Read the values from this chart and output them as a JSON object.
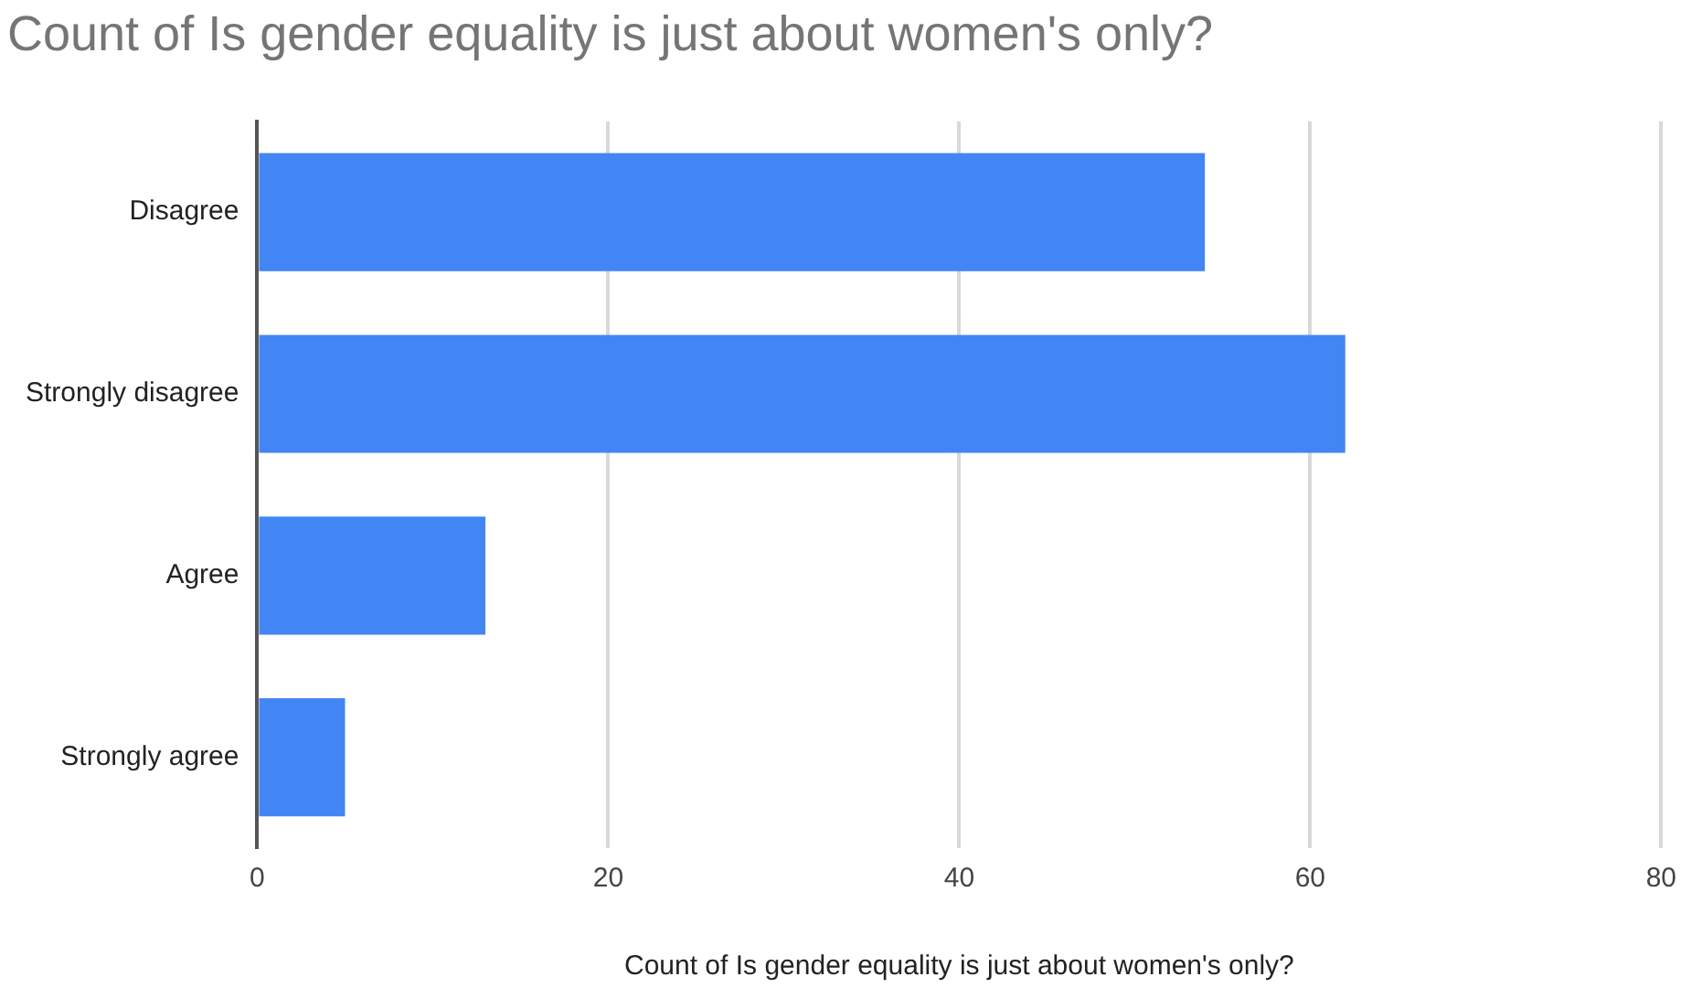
{
  "chart_data": {
    "type": "bar",
    "orientation": "horizontal",
    "title": "Count of Is gender equality is just about women's only?",
    "xlabel": "Count of Is gender equality is just about women's only?",
    "categories": [
      "Disagree",
      "Strongly disagree",
      "Agree",
      "Strongly agree"
    ],
    "values": [
      54,
      62,
      13,
      5
    ],
    "color": "#4285f4",
    "xlim": [
      0,
      80
    ],
    "xticks": [
      0,
      20,
      40,
      60,
      80
    ],
    "grid": "x",
    "legend": false
  }
}
